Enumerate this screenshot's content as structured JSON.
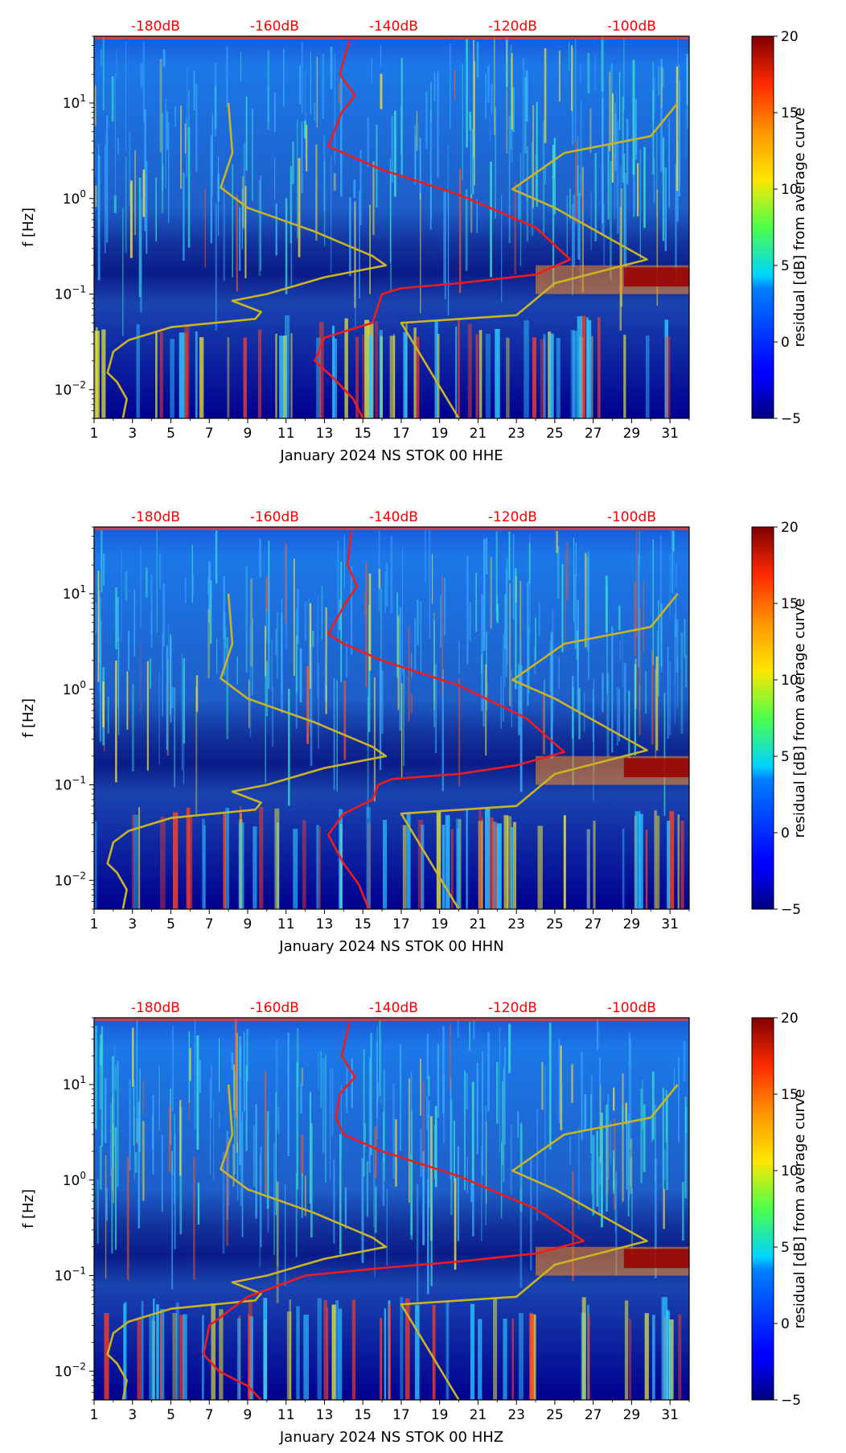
{
  "chart_data": [
    {
      "type": "heatmap",
      "title": "January 2024 NS STOK 00 HHE",
      "xlabel": "January 2024 NS STOK 00 HHE",
      "ylabel": "f [Hz]",
      "colorbar_label": "residual [dB] from average curve",
      "x_ticks": [
        "1",
        "3",
        "5",
        "7",
        "9",
        "11",
        "13",
        "15",
        "17",
        "19",
        "21",
        "23",
        "25",
        "27",
        "29",
        "31"
      ],
      "xlim": [
        1,
        32
      ],
      "y_scale": "log",
      "ylim": [
        0.005,
        50
      ],
      "y_ticks": [
        {
          "mant": "10",
          "exp": "1",
          "value": 10
        },
        {
          "mant": "10",
          "exp": "0",
          "value": 1
        },
        {
          "mant": "10",
          "exp": "−1",
          "value": 0.1
        },
        {
          "mant": "10",
          "exp": "−2",
          "value": 0.01
        }
      ],
      "top_db_ticks": [
        {
          "label": "-180dB",
          "day": 4.2
        },
        {
          "label": "-160dB",
          "day": 10.4
        },
        {
          "label": "-140dB",
          "day": 16.6
        },
        {
          "label": "-120dB",
          "day": 22.8
        },
        {
          "label": "-100dB",
          "day": 29.0
        }
      ],
      "colorbar_range": [
        -5,
        20
      ],
      "colorbar_ticks": [
        "20",
        "15",
        "10",
        "5",
        "0",
        "−5"
      ],
      "median_curve": [
        [
          14.3,
          45
        ],
        [
          13.8,
          20
        ],
        [
          14.6,
          12
        ],
        [
          13.9,
          8
        ],
        [
          13.2,
          3.5
        ],
        [
          14,
          3
        ],
        [
          16,
          2
        ],
        [
          20,
          1.1
        ],
        [
          24,
          0.5
        ],
        [
          25.8,
          0.23
        ],
        [
          24,
          0.16
        ],
        [
          20,
          0.13
        ],
        [
          17,
          0.115
        ],
        [
          16,
          0.1
        ],
        [
          15.5,
          0.05
        ],
        [
          13,
          0.035
        ],
        [
          12.5,
          0.02
        ],
        [
          13.5,
          0.013
        ],
        [
          14.5,
          0.008
        ],
        [
          15,
          0.005
        ]
      ],
      "nlnm_curve": [
        [
          8,
          10
        ],
        [
          8.2,
          3
        ],
        [
          7.6,
          1.3
        ],
        [
          9,
          0.8
        ],
        [
          12.5,
          0.45
        ],
        [
          15.5,
          0.25
        ],
        [
          16.2,
          0.2
        ],
        [
          13,
          0.15
        ],
        [
          10,
          0.1
        ],
        [
          8.2,
          0.085
        ],
        [
          9.7,
          0.065
        ],
        [
          9.4,
          0.055
        ],
        [
          5,
          0.045
        ],
        [
          2.8,
          0.033
        ],
        [
          2,
          0.025
        ],
        [
          1.7,
          0.015
        ],
        [
          2.2,
          0.012
        ],
        [
          2.7,
          0.008
        ],
        [
          2.5,
          0.005
        ]
      ],
      "nhnm_curve": [
        [
          31.4,
          10
        ],
        [
          30,
          4.5
        ],
        [
          25.5,
          3
        ],
        [
          22.8,
          1.25
        ],
        [
          25,
          0.8
        ],
        [
          29.8,
          0.23
        ],
        [
          25,
          0.13
        ],
        [
          23,
          0.06
        ],
        [
          17,
          0.05
        ],
        [
          20,
          0.005
        ]
      ]
    },
    {
      "type": "heatmap",
      "title": "January 2024 NS STOK 00 HHN",
      "xlabel": "January 2024 NS STOK 00 HHN",
      "ylabel": "f [Hz]",
      "colorbar_label": "residual [dB] from average curve",
      "x_ticks": [
        "1",
        "3",
        "5",
        "7",
        "9",
        "11",
        "13",
        "15",
        "17",
        "19",
        "21",
        "23",
        "25",
        "27",
        "29",
        "31"
      ],
      "xlim": [
        1,
        32
      ],
      "y_scale": "log",
      "ylim": [
        0.005,
        50
      ],
      "y_ticks": [
        {
          "mant": "10",
          "exp": "1",
          "value": 10
        },
        {
          "mant": "10",
          "exp": "0",
          "value": 1
        },
        {
          "mant": "10",
          "exp": "−1",
          "value": 0.1
        },
        {
          "mant": "10",
          "exp": "−2",
          "value": 0.01
        }
      ],
      "top_db_ticks": [
        {
          "label": "-180dB",
          "day": 4.2
        },
        {
          "label": "-160dB",
          "day": 10.4
        },
        {
          "label": "-140dB",
          "day": 16.6
        },
        {
          "label": "-120dB",
          "day": 22.8
        },
        {
          "label": "-100dB",
          "day": 29.0
        }
      ],
      "colorbar_range": [
        -5,
        20
      ],
      "colorbar_ticks": [
        "20",
        "15",
        "10",
        "5",
        "0",
        "−5"
      ],
      "median_curve": [
        [
          14.4,
          45
        ],
        [
          14.2,
          20
        ],
        [
          14.7,
          12
        ],
        [
          14.1,
          8
        ],
        [
          13.2,
          3.8
        ],
        [
          14,
          3
        ],
        [
          16,
          2
        ],
        [
          20,
          1.1
        ],
        [
          23.5,
          0.5
        ],
        [
          25.5,
          0.22
        ],
        [
          23,
          0.16
        ],
        [
          20,
          0.13
        ],
        [
          16.5,
          0.115
        ],
        [
          15.8,
          0.1
        ],
        [
          15.5,
          0.07
        ],
        [
          14,
          0.05
        ],
        [
          13.2,
          0.03
        ],
        [
          14,
          0.015
        ],
        [
          14.8,
          0.009
        ],
        [
          15.3,
          0.005
        ]
      ],
      "nlnm_curve": [
        [
          8,
          10
        ],
        [
          8.2,
          3
        ],
        [
          7.6,
          1.3
        ],
        [
          9,
          0.8
        ],
        [
          12.5,
          0.45
        ],
        [
          15.5,
          0.25
        ],
        [
          16.2,
          0.2
        ],
        [
          13,
          0.15
        ],
        [
          10,
          0.1
        ],
        [
          8.2,
          0.085
        ],
        [
          9.7,
          0.065
        ],
        [
          9.4,
          0.055
        ],
        [
          5,
          0.045
        ],
        [
          2.8,
          0.033
        ],
        [
          2,
          0.025
        ],
        [
          1.7,
          0.015
        ],
        [
          2.2,
          0.012
        ],
        [
          2.7,
          0.008
        ],
        [
          2.5,
          0.005
        ]
      ],
      "nhnm_curve": [
        [
          31.4,
          10
        ],
        [
          30,
          4.5
        ],
        [
          25.5,
          3
        ],
        [
          22.8,
          1.25
        ],
        [
          25,
          0.8
        ],
        [
          29.8,
          0.23
        ],
        [
          25,
          0.13
        ],
        [
          23,
          0.06
        ],
        [
          17,
          0.05
        ],
        [
          20,
          0.005
        ]
      ]
    },
    {
      "type": "heatmap",
      "title": "January 2024 NS STOK 00 HHZ",
      "xlabel": "January 2024 NS STOK 00 HHZ",
      "ylabel": "f [Hz]",
      "colorbar_label": "residual [dB] from average curve",
      "x_ticks": [
        "1",
        "3",
        "5",
        "7",
        "9",
        "11",
        "13",
        "15",
        "17",
        "19",
        "21",
        "23",
        "25",
        "27",
        "29",
        "31"
      ],
      "xlim": [
        1,
        32
      ],
      "y_scale": "log",
      "ylim": [
        0.005,
        50
      ],
      "y_ticks": [
        {
          "mant": "10",
          "exp": "1",
          "value": 10
        },
        {
          "mant": "10",
          "exp": "0",
          "value": 1
        },
        {
          "mant": "10",
          "exp": "−1",
          "value": 0.1
        },
        {
          "mant": "10",
          "exp": "−2",
          "value": 0.01
        }
      ],
      "top_db_ticks": [
        {
          "label": "-180dB",
          "day": 4.2
        },
        {
          "label": "-160dB",
          "day": 10.4
        },
        {
          "label": "-140dB",
          "day": 16.6
        },
        {
          "label": "-120dB",
          "day": 22.8
        },
        {
          "label": "-100dB",
          "day": 29.0
        }
      ],
      "colorbar_range": [
        -5,
        20
      ],
      "colorbar_ticks": [
        "20",
        "15",
        "10",
        "5",
        "0",
        "−5"
      ],
      "median_curve": [
        [
          14.3,
          45
        ],
        [
          13.9,
          20
        ],
        [
          14.6,
          12
        ],
        [
          13.8,
          8
        ],
        [
          13.6,
          4.5
        ],
        [
          14,
          3
        ],
        [
          16,
          2
        ],
        [
          20,
          1.1
        ],
        [
          24,
          0.5
        ],
        [
          26.5,
          0.23
        ],
        [
          24,
          0.17
        ],
        [
          20,
          0.14
        ],
        [
          16,
          0.12
        ],
        [
          12,
          0.1
        ],
        [
          9,
          0.06
        ],
        [
          7,
          0.03
        ],
        [
          6.7,
          0.015
        ],
        [
          7.5,
          0.01
        ],
        [
          9,
          0.007
        ],
        [
          9.7,
          0.005
        ]
      ],
      "nlnm_curve": [
        [
          8,
          10
        ],
        [
          8.2,
          3
        ],
        [
          7.6,
          1.3
        ],
        [
          9,
          0.8
        ],
        [
          12.5,
          0.45
        ],
        [
          15.5,
          0.25
        ],
        [
          16.2,
          0.2
        ],
        [
          13,
          0.15
        ],
        [
          10,
          0.1
        ],
        [
          8.2,
          0.085
        ],
        [
          9.7,
          0.065
        ],
        [
          9.4,
          0.055
        ],
        [
          5,
          0.045
        ],
        [
          2.8,
          0.033
        ],
        [
          2,
          0.025
        ],
        [
          1.7,
          0.015
        ],
        [
          2.2,
          0.012
        ],
        [
          2.7,
          0.008
        ],
        [
          2.5,
          0.005
        ]
      ],
      "nhnm_curve": [
        [
          31.4,
          10
        ],
        [
          30,
          4.5
        ],
        [
          25.5,
          3
        ],
        [
          22.8,
          1.25
        ],
        [
          25,
          0.8
        ],
        [
          29.8,
          0.23
        ],
        [
          25,
          0.13
        ],
        [
          23,
          0.06
        ],
        [
          17,
          0.05
        ],
        [
          20,
          0.005
        ]
      ]
    }
  ],
  "colors": {
    "median": "#ee1c1c",
    "noise_model": "#c8b424",
    "db_label": "#ff0000",
    "background_low": "#00008f"
  }
}
